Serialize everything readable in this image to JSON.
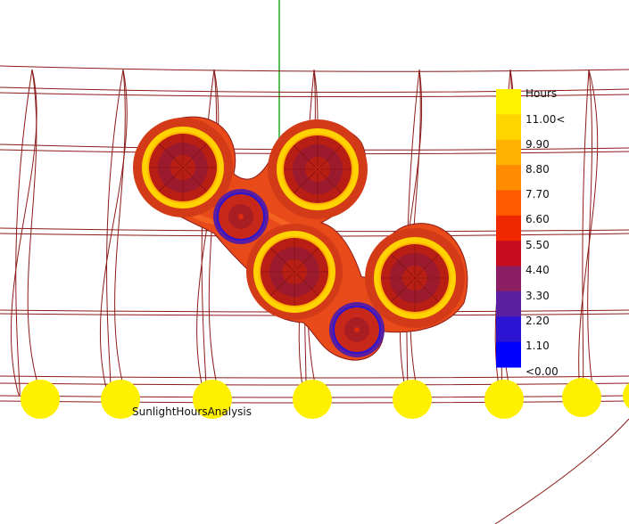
{
  "analysis_title": "SunlightHoursAnalysis",
  "legend": {
    "title": "Hours",
    "labels": [
      "11.00<",
      "9.90",
      "8.80",
      "7.70",
      "6.60",
      "5.50",
      "4.40",
      "3.30",
      "2.20",
      "1.10",
      "<0.00"
    ],
    "colors": [
      "#FFF200",
      "#FFD500",
      "#FFB300",
      "#FF8C00",
      "#FF5A00",
      "#F02800",
      "#C80E1E",
      "#8C1E64",
      "#5A1EA0",
      "#2D14D2",
      "#0000FF"
    ]
  },
  "colors": {
    "sun_marker": "#FFF000",
    "sunpath_line": "#8B1A1A",
    "north_axis": "#22AA22",
    "heat_base": "#E84A1A",
    "heat_dark": "#B81E14"
  }
}
